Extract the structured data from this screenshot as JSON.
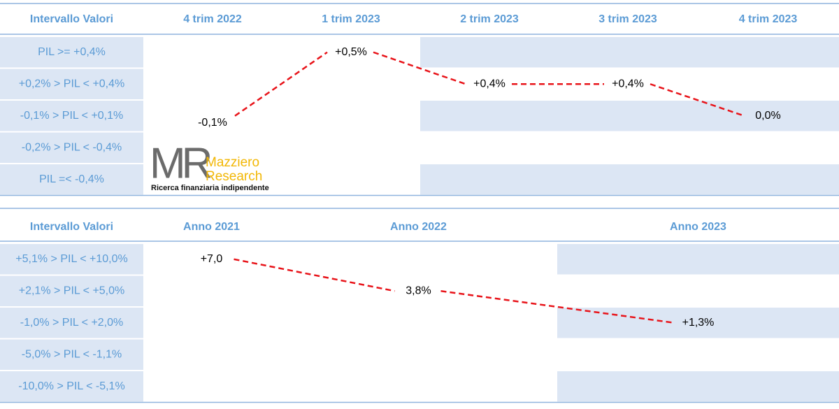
{
  "tables": [
    {
      "header": [
        "Intervallo Valori",
        "4 trim 2022",
        "1 trim 2023",
        "2 trim 2023",
        "3 trim 2023",
        "4 trim 2023"
      ],
      "rows": [
        [
          "PIL >= +0,4%",
          null,
          "+0,5%",
          null,
          null,
          null
        ],
        [
          "+0,2% > PIL < +0,4%",
          null,
          null,
          "+0,4%",
          "+0,4%",
          null
        ],
        [
          "-0,1% > PIL < +0,1%",
          "-0,1%",
          null,
          null,
          null,
          "0,0%"
        ],
        [
          "-0,2% > PIL < -0,4%",
          null,
          null,
          null,
          null,
          null
        ],
        [
          "PIL =< -0,4%",
          null,
          null,
          null,
          null,
          null
        ]
      ]
    },
    {
      "header": [
        "Intervallo Valori",
        "Anno 2021",
        "Anno 2022",
        "Anno 2023"
      ],
      "rows": [
        [
          "+5,1% > PIL < +10,0%",
          "+7,0",
          null,
          null
        ],
        [
          "+2,1% > PIL < +5,0%",
          null,
          "3,8%",
          null
        ],
        [
          "-1,0% > PIL < +2,0%",
          null,
          null,
          "+1,3%"
        ],
        [
          "-5,0% > PIL < -1,1%",
          null,
          null,
          null
        ],
        [
          "-10,0% > PIL < -5,1%",
          null,
          null,
          null
        ]
      ]
    }
  ],
  "logo": {
    "mark": "MR",
    "name_line1": "Mazziero",
    "name_line2": "Research",
    "tagline": "Ricerca finanziaria indipendente"
  }
}
